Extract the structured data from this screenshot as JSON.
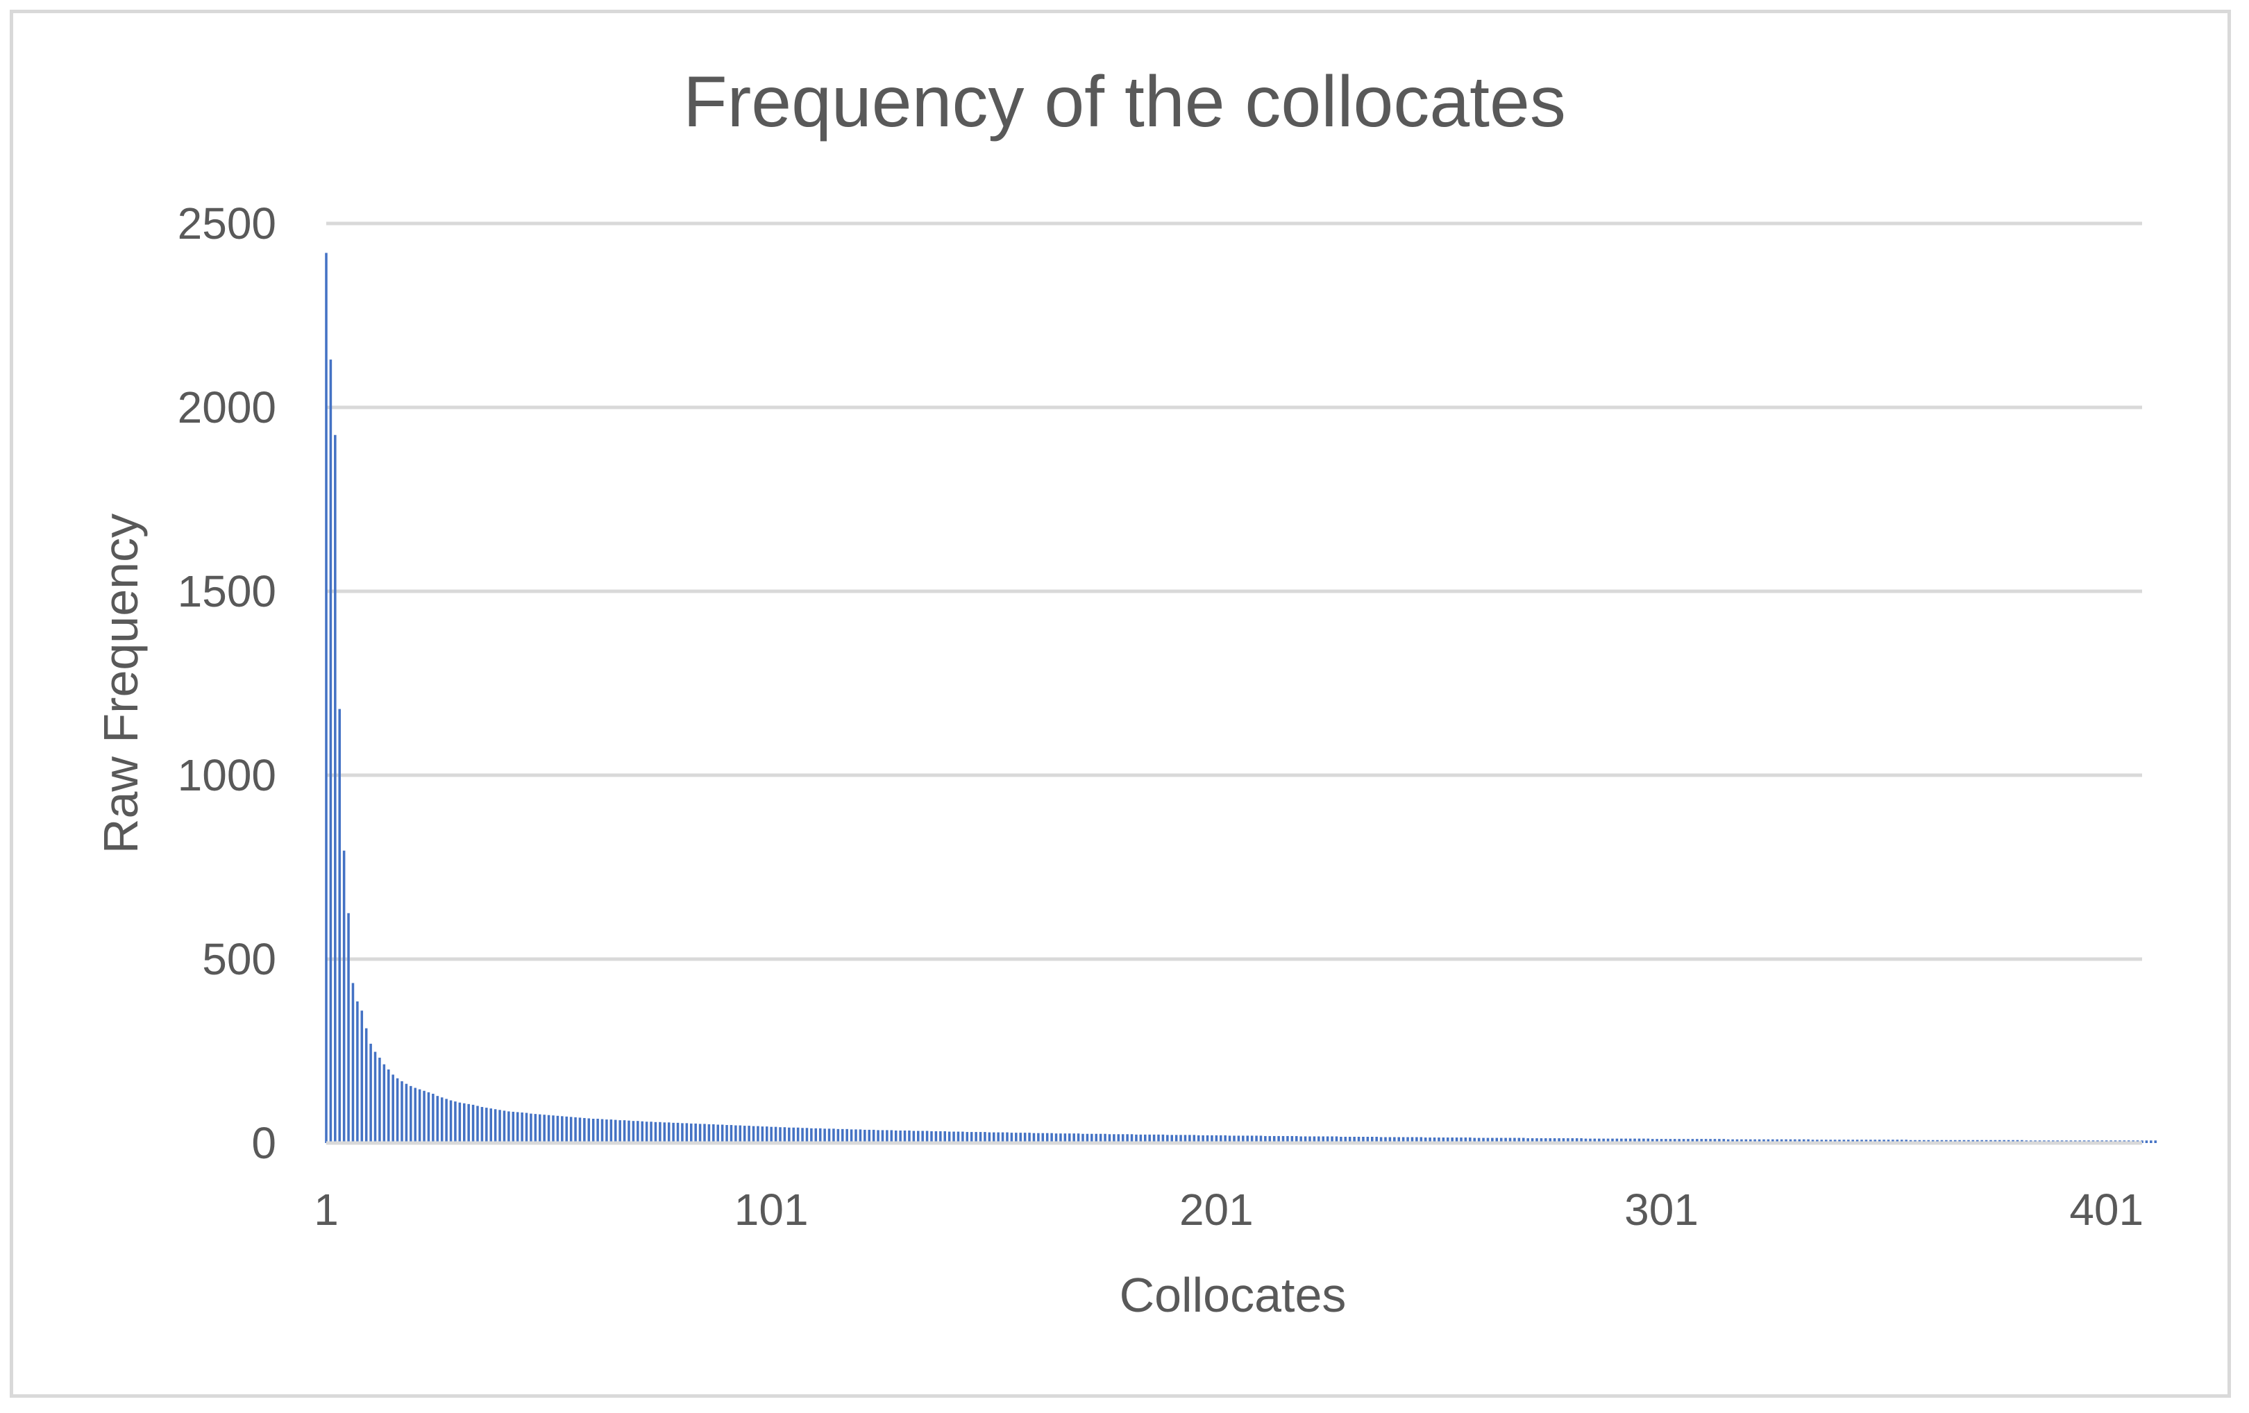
{
  "chart_data": {
    "type": "bar",
    "title": "Frequency of the collocates",
    "xlabel": "Collocates",
    "ylabel": "Raw Frequency",
    "ylim": [
      0,
      2500
    ],
    "yticks": [
      0,
      500,
      1000,
      1500,
      2000,
      2500
    ],
    "xticks": [
      1,
      101,
      201,
      301,
      401
    ],
    "xlim": [
      1,
      409
    ],
    "grid": true,
    "legend": "none",
    "bar_color": "#4472C4",
    "series": [
      {
        "values": [
          2420,
          2130,
          1925,
          1180,
          795,
          625,
          435,
          385,
          360,
          312,
          270,
          248,
          232,
          214,
          200,
          186,
          176,
          168,
          161,
          155,
          150,
          146,
          142,
          138,
          134,
          128,
          124,
          120,
          116,
          113,
          110,
          108,
          106,
          104,
          101,
          98,
          96,
          94,
          92,
          90,
          88,
          86,
          85,
          84,
          83,
          82,
          80,
          79,
          78,
          77,
          76,
          75,
          74,
          73,
          72,
          71,
          70,
          69,
          68,
          67,
          66,
          66,
          65,
          64,
          64,
          63,
          62,
          62,
          61,
          60,
          60,
          59,
          58,
          58,
          57,
          57,
          56,
          56,
          55,
          55,
          54,
          54,
          53,
          53,
          52,
          52,
          51,
          51,
          50,
          50,
          49,
          49,
          48,
          48,
          47,
          47,
          46,
          46,
          45,
          45,
          44,
          44,
          43,
          43,
          42,
          42,
          42,
          41,
          41,
          40,
          40,
          40,
          39,
          39,
          39,
          38,
          38,
          38,
          37,
          37,
          37,
          36,
          36,
          36,
          35,
          35,
          35,
          35,
          34,
          34,
          34,
          34,
          33,
          33,
          33,
          33,
          32,
          32,
          32,
          32,
          31,
          31,
          31,
          31,
          30,
          30,
          30,
          30,
          30,
          29,
          29,
          29,
          29,
          29,
          28,
          28,
          28,
          28,
          28,
          27,
          27,
          27,
          27,
          27,
          26,
          26,
          26,
          26,
          26,
          26,
          25,
          25,
          25,
          25,
          25,
          25,
          24,
          24,
          24,
          24,
          24,
          24,
          23,
          23,
          23,
          23,
          23,
          23,
          23,
          22,
          22,
          22,
          22,
          22,
          22,
          22,
          21,
          21,
          21,
          21,
          21,
          21,
          21,
          20,
          20,
          20,
          20,
          20,
          20,
          20,
          20,
          19,
          19,
          19,
          19,
          19,
          19,
          19,
          19,
          18,
          18,
          18,
          18,
          18,
          18,
          18,
          18,
          18,
          17,
          17,
          17,
          17,
          17,
          17,
          17,
          17,
          17,
          16,
          16,
          16,
          16,
          16,
          16,
          16,
          16,
          16,
          16,
          15,
          15,
          15,
          15,
          15,
          15,
          15,
          15,
          15,
          15,
          15,
          14,
          14,
          14,
          14,
          14,
          14,
          14,
          14,
          14,
          14,
          14,
          14,
          13,
          13,
          13,
          13,
          13,
          13,
          13,
          13,
          13,
          13,
          13,
          13,
          13,
          12,
          12,
          12,
          12,
          12,
          12,
          12,
          12,
          12,
          12,
          12,
          12,
          12,
          12,
          12,
          11,
          11,
          11,
          11,
          11,
          11,
          11,
          11,
          11,
          11,
          11,
          11,
          11,
          11,
          11,
          11,
          11,
          10,
          10,
          10,
          10,
          10,
          10,
          10,
          10,
          10,
          10,
          10,
          10,
          10,
          10,
          10,
          10,
          10,
          10,
          10,
          9,
          9,
          9,
          9,
          9,
          9,
          9,
          9,
          9,
          9,
          9,
          9,
          9,
          9,
          9,
          9,
          9,
          9,
          9,
          9,
          9,
          9,
          8,
          8,
          8,
          8,
          8,
          8,
          8,
          8,
          8,
          8,
          8,
          8,
          8,
          8,
          8,
          8,
          8,
          8,
          8,
          8,
          8,
          8,
          8,
          8,
          8,
          8,
          7,
          7,
          7,
          7,
          7,
          7,
          7,
          7,
          7,
          7,
          7,
          7,
          7,
          7,
          7,
          7,
          7,
          7,
          7,
          7,
          7,
          7,
          7,
          7,
          7,
          7,
          7,
          7,
          7,
          7
        ]
      }
    ]
  }
}
